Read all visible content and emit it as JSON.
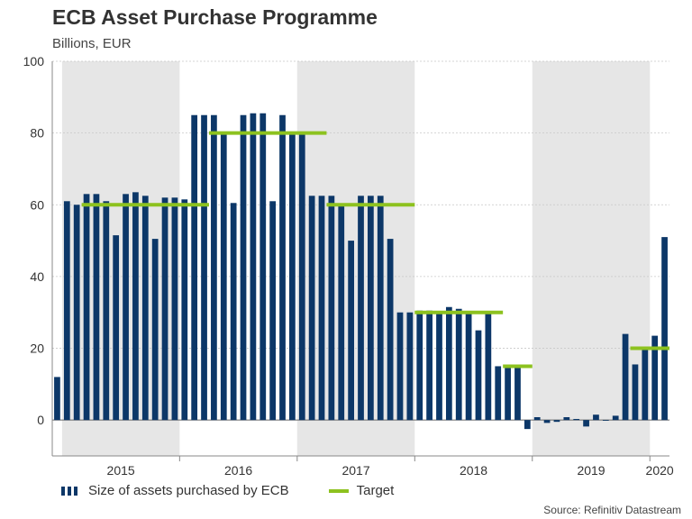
{
  "header": {
    "title": "ECB Asset Purchase Programme",
    "subtitle": "Billions, EUR"
  },
  "legend": {
    "bars_label": "Size of assets purchased by ECB",
    "target_label": "Target"
  },
  "footer": {
    "source": "Source: Refinitiv Datastream"
  },
  "colors": {
    "bar": "#0c3768",
    "target": "#8dc21f",
    "shade": "#e6e6e6",
    "grid": "#c8c8c8"
  },
  "chart_data": {
    "type": "bar",
    "title": "ECB Asset Purchase Programme",
    "ylabel": "Billions, EUR",
    "xlabel": "",
    "ylim": [
      -10,
      100
    ],
    "yticks": [
      0,
      20,
      40,
      60,
      80,
      100
    ],
    "start_month": "2014-12",
    "years": [
      "2015",
      "2016",
      "2017",
      "2018",
      "2019",
      "2020"
    ],
    "shaded_years": [
      "2015",
      "2017",
      "2019"
    ],
    "series": [
      {
        "name": "Size of assets purchased by ECB",
        "values": [
          12,
          61,
          60,
          63,
          63,
          61,
          51.5,
          63,
          63.5,
          62.5,
          50.5,
          62,
          62,
          61.5,
          85,
          85,
          85,
          80,
          60.5,
          85,
          85.5,
          85.5,
          61,
          85,
          80,
          80,
          62.5,
          62.5,
          62.5,
          60,
          50,
          62.5,
          62.5,
          62.5,
          50.5,
          30,
          30,
          30.5,
          30.5,
          30,
          31.5,
          31,
          30,
          25,
          30,
          15,
          15,
          15,
          -2.5,
          0.8,
          -0.8,
          -0.5,
          0.8,
          0.3,
          -1.8,
          1.5,
          0,
          1.2,
          24,
          15.5,
          20,
          23.5,
          51
        ]
      }
    ],
    "targets": [
      {
        "name": "Target",
        "from": "2015-03",
        "to": "2016-03",
        "value": 60
      },
      {
        "name": "Target",
        "from": "2016-04",
        "to": "2017-03",
        "value": 80
      },
      {
        "name": "Target",
        "from": "2017-04",
        "to": "2017-12",
        "value": 60
      },
      {
        "name": "Target",
        "from": "2018-01",
        "to": "2018-09",
        "value": 30
      },
      {
        "name": "Target",
        "from": "2018-10",
        "to": "2018-12",
        "value": 15
      },
      {
        "name": "Target",
        "from": "2019-11",
        "to": "2020-02",
        "value": 20
      }
    ]
  }
}
